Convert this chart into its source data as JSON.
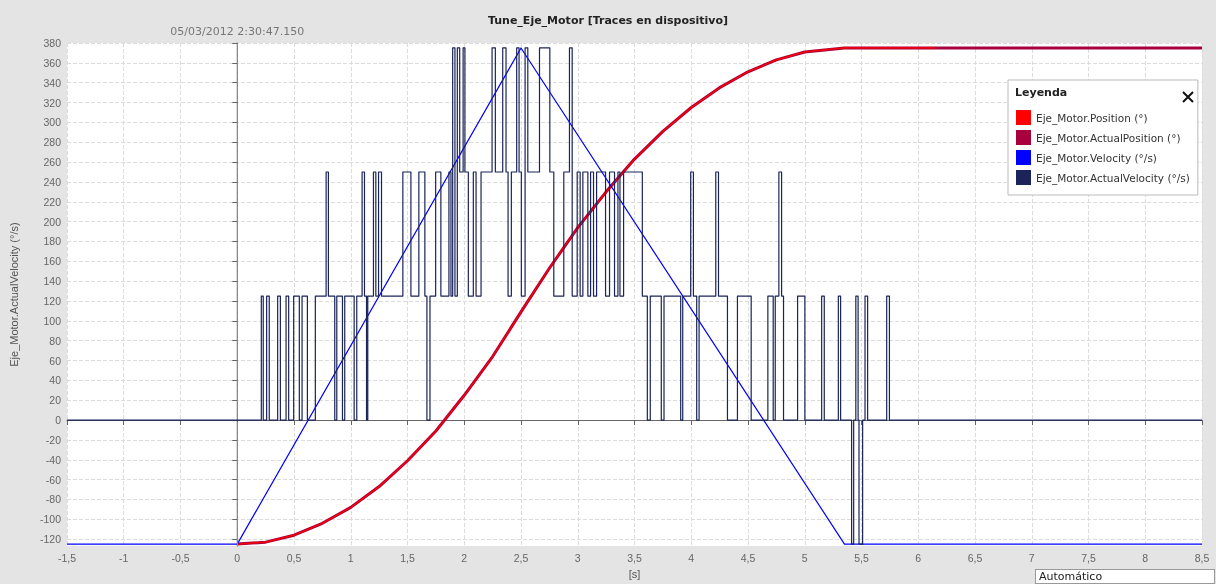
{
  "chart_data": {
    "type": "line",
    "title": "Tune_Eje_Motor [Traces en dispositivo]",
    "xlabel": "[s]",
    "ylabel": "Eje_Motor.ActualVelocity (°/s)",
    "legend_title": "Leyenda",
    "xlim": [
      -1.5,
      8.5
    ],
    "xticks": [
      {
        "value": -1.5,
        "label": "-1,5"
      },
      -1,
      {
        "value": -0.5,
        "label": "-0,5"
      },
      0,
      {
        "value": 0.5,
        "label": "0,5"
      },
      1,
      {
        "value": 1.5,
        "label": "1,5"
      },
      2,
      {
        "value": 2.5,
        "label": "2,5"
      },
      3,
      {
        "value": 3.5,
        "label": "3,5"
      },
      4,
      {
        "value": 4.5,
        "label": "4,5"
      },
      5,
      {
        "value": 5.5,
        "label": "5,5"
      },
      6,
      {
        "value": 6.5,
        "label": "6,5"
      },
      7,
      {
        "value": 7.5,
        "label": "7,5"
      },
      8,
      {
        "value": 8.5,
        "label": "8,5"
      }
    ],
    "ylim": [
      -127,
      380
    ],
    "yticks": [
      -120,
      -100,
      -80,
      -60,
      -40,
      -20,
      0,
      20,
      40,
      60,
      80,
      100,
      120,
      140,
      160,
      180,
      200,
      220,
      240,
      260,
      280,
      300,
      320,
      340,
      360,
      380
    ],
    "grid": true,
    "legend": "top right",
    "marker": "none",
    "ref_lines": [
      {
        "axis": "x",
        "value": 0,
        "color": "#2ab5c4",
        "line_style": "dashed"
      }
    ],
    "annotations": [
      {
        "text": "05/03/2012 2:30:47.150",
        "x": 0,
        "y": 380
      },
      "Automático"
    ],
    "series": [
      {
        "name": "Eje_Motor.ActualPosition (°)",
        "color": "#a8003c",
        "x": [
          0,
          0.25,
          0.5,
          0.75,
          1,
          1.25,
          1.5,
          1.75,
          2,
          2.25,
          2.5,
          2.75,
          3,
          3.25,
          3.5,
          3.75,
          4,
          4.25,
          4.5,
          4.75,
          5,
          5.35,
          8.5
        ],
        "values": [
          -125,
          -123,
          -116,
          -104,
          -88,
          -67,
          -41,
          -11,
          25,
          64,
          109,
          153,
          194,
          230,
          263,
          291,
          315,
          335,
          351,
          363,
          371,
          375,
          375
        ]
      },
      {
        "name": "Eje_Motor.Position (°)",
        "color": "#ff0000",
        "x": [
          0,
          0.25,
          0.5,
          0.75,
          1,
          1.25,
          1.5,
          1.75,
          2,
          2.25,
          2.5,
          2.75,
          3,
          3.25,
          3.5,
          3.75,
          4,
          4.25,
          4.5,
          4.75,
          5,
          5.35,
          6.15
        ],
        "values": [
          -125,
          -123,
          -116,
          -104,
          -88,
          -67,
          -41,
          -11,
          25,
          64,
          109,
          153,
          194,
          230,
          263,
          291,
          315,
          335,
          351,
          363,
          371,
          375,
          375
        ]
      },
      {
        "name": "Eje_Motor.Velocity (°/s)",
        "color": "#0000ff",
        "x": [
          -1.5,
          0,
          2.5,
          5.35,
          8.5
        ],
        "values": [
          -125,
          -125,
          375,
          -125,
          -125
        ]
      },
      {
        "name": "Eje_Motor.ActualVelocity (°/s)",
        "color": "#1a2458",
        "type": "step",
        "x": [
          -1.5,
          0.212,
          0.229,
          0.259,
          0.282,
          0.356,
          0.38,
          0.43,
          0.453,
          0.497,
          0.547,
          0.571,
          0.618,
          0.688,
          0.783,
          0.803,
          0.859,
          0.877,
          0.927,
          0.947,
          1.03,
          1.053,
          1.1,
          1.121,
          1.139,
          1.15,
          1.2,
          1.221,
          1.245,
          1.271,
          1.459,
          1.53,
          1.6,
          1.653,
          1.671,
          1.698,
          1.748,
          1.794,
          1.865,
          1.883,
          1.898,
          1.918,
          1.939,
          1.96,
          1.99,
          2.006,
          2.036,
          2.08,
          2.104,
          2.148,
          2.245,
          2.274,
          2.339,
          2.368,
          2.386,
          2.415,
          2.462,
          2.483,
          2.503,
          2.536,
          2.56,
          2.663,
          2.754,
          2.789,
          2.877,
          2.927,
          2.951,
          2.995,
          3.021,
          3.045,
          3.089,
          3.113,
          3.139,
          3.166,
          3.245,
          3.28,
          3.324,
          3.354,
          3.372,
          3.404,
          3.569,
          3.613,
          3.639,
          3.736,
          3.76,
          3.907,
          3.925,
          3.995,
          4.019,
          4.048,
          4.069,
          4.216,
          4.24,
          4.319,
          4.407,
          4.528,
          4.675,
          4.722,
          4.74,
          4.772,
          4.796,
          4.813,
          4.937,
          5.001,
          5.149,
          5.172,
          5.296,
          5.316,
          5.413,
          5.431,
          5.45,
          5.47,
          5.478,
          5.51,
          5.531,
          5.554,
          5.722,
          5.746,
          8.5
        ],
        "values": [
          0,
          125,
          0,
          125,
          0,
          125,
          0,
          125,
          0,
          125,
          0,
          125,
          0,
          125,
          250,
          125,
          0,
          125,
          0,
          125,
          0,
          125,
          250,
          125,
          0,
          125,
          250,
          125,
          250,
          125,
          250,
          125,
          250,
          125,
          0,
          125,
          250,
          125,
          250,
          125,
          375,
          125,
          375,
          250,
          375,
          250,
          125,
          250,
          125,
          250,
          375,
          250,
          375,
          250,
          125,
          250,
          375,
          250,
          125,
          375,
          250,
          375,
          250,
          125,
          250,
          375,
          125,
          250,
          125,
          250,
          125,
          250,
          125,
          250,
          125,
          250,
          125,
          250,
          125,
          250,
          125,
          0,
          125,
          0,
          125,
          0,
          125,
          250,
          125,
          0,
          125,
          250,
          125,
          0,
          125,
          0,
          125,
          0,
          125,
          250,
          125,
          0,
          125,
          0,
          125,
          0,
          125,
          0,
          -125,
          0,
          125,
          0,
          -125,
          0,
          125,
          0,
          125,
          0,
          0
        ]
      }
    ]
  }
}
